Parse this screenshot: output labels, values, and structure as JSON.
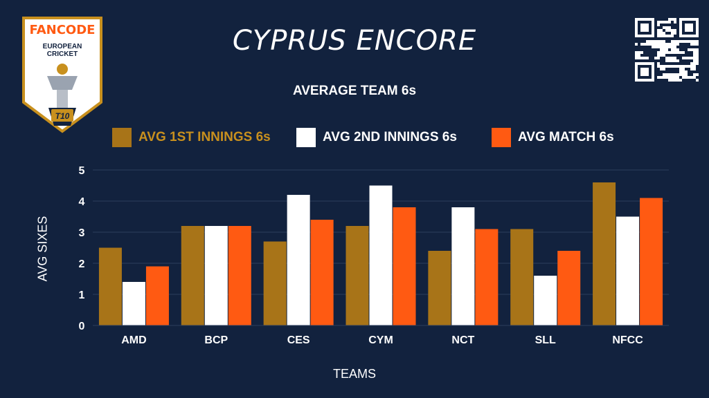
{
  "header": {
    "title": "CYPRUS ENCORE",
    "subtitle": "AVERAGE TEAM 6s"
  },
  "logo": {
    "brand": "FANCODE",
    "line1": "EUROPEAN",
    "line2": "CRICKET",
    "badge": "T10"
  },
  "colors": {
    "background": "#12223e",
    "series1": "#a87418",
    "series2": "#ffffff",
    "series3": "#ff5a12",
    "gold": "#c8901e"
  },
  "chart_data": {
    "type": "bar",
    "title": "AVERAGE TEAM 6s",
    "xlabel": "TEAMS",
    "ylabel": "AVG SIXES",
    "ylim": [
      0,
      5
    ],
    "yticks": [
      0,
      1,
      2,
      3,
      4,
      5
    ],
    "grid": true,
    "legend_position": "top",
    "categories": [
      "AMD",
      "BCP",
      "CES",
      "CYM",
      "NCT",
      "SLL",
      "NFCC"
    ],
    "series": [
      {
        "name": "AVG 1ST INNINGS 6s",
        "color": "#a87418",
        "values": [
          2.5,
          3.2,
          2.7,
          3.2,
          2.4,
          3.1,
          4.6
        ]
      },
      {
        "name": "AVG 2ND INNINGS 6s",
        "color": "#ffffff",
        "values": [
          1.4,
          3.2,
          4.2,
          4.5,
          3.8,
          1.6,
          3.5
        ]
      },
      {
        "name": "AVG MATCH 6s",
        "color": "#ff5a12",
        "values": [
          1.9,
          3.2,
          3.4,
          3.8,
          3.1,
          2.4,
          4.1
        ]
      }
    ]
  }
}
